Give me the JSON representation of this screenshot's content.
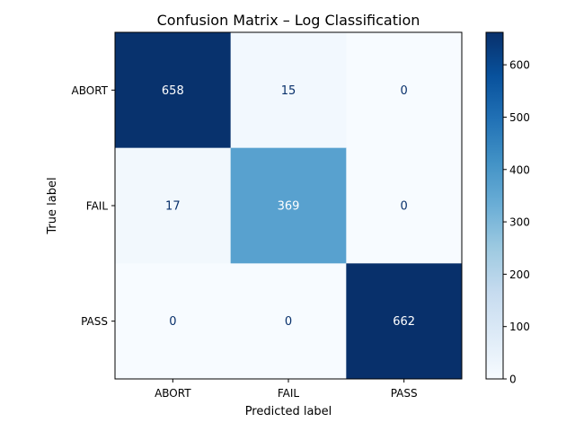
{
  "chart_data": {
    "type": "heatmap",
    "title": "Confusion Matrix – Log Classification",
    "xlabel": "Predicted label",
    "ylabel": "True label",
    "x_categories": [
      "ABORT",
      "FAIL",
      "PASS"
    ],
    "y_categories": [
      "ABORT",
      "FAIL",
      "PASS"
    ],
    "values": [
      [
        658,
        15,
        0
      ],
      [
        17,
        369,
        0
      ],
      [
        0,
        0,
        662
      ]
    ],
    "colormap": "Blues",
    "colorbar": {
      "min": 0,
      "max": 662,
      "ticks": [
        "0",
        "100",
        "200",
        "300",
        "400",
        "500",
        "600"
      ]
    }
  }
}
